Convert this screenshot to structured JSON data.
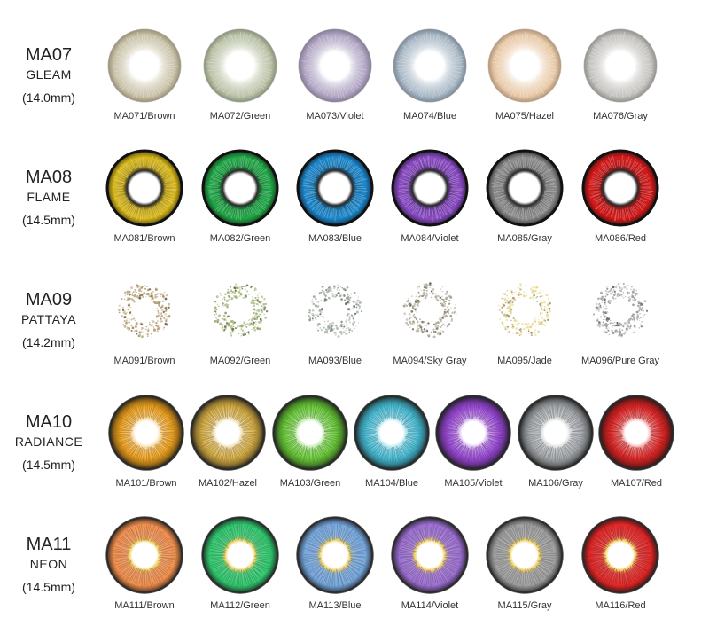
{
  "rows": [
    {
      "code": "MA07",
      "name": "GLEAM",
      "diameter": "(14.0mm)",
      "style": "gleam",
      "lenses": [
        {
          "label": "MA071/Brown",
          "color": "#c9c2a8"
        },
        {
          "label": "MA072/Green",
          "color": "#b9c2a6"
        },
        {
          "label": "MA073/Violet",
          "color": "#b1a6c4"
        },
        {
          "label": "MA074/Blue",
          "color": "#a9b8c6"
        },
        {
          "label": "MA075/Hazel",
          "color": "#e8c8a6"
        },
        {
          "label": "MA076/Gray",
          "color": "#c4c2be"
        }
      ]
    },
    {
      "code": "MA08",
      "name": "FLAME",
      "diameter": "(14.5mm)",
      "style": "flame",
      "lenses": [
        {
          "label": "MA081/Brown",
          "color": "#d8b81c"
        },
        {
          "label": "MA082/Green",
          "color": "#22a848"
        },
        {
          "label": "MA083/Blue",
          "color": "#1e88cc"
        },
        {
          "label": "MA084/Violet",
          "color": "#8a4cc4"
        },
        {
          "label": "MA085/Gray",
          "color": "#8e8e8e"
        },
        {
          "label": "MA086/Red",
          "color": "#d61c1c"
        }
      ]
    },
    {
      "code": "MA09",
      "name": "PATTAYA",
      "diameter": "(14.2mm)",
      "style": "pattaya",
      "lenses": [
        {
          "label": "MA091/Brown",
          "color": "#b8a070"
        },
        {
          "label": "MA092/Green",
          "color": "#9cb06c"
        },
        {
          "label": "MA093/Blue",
          "color": "#a0b0a0"
        },
        {
          "label": "MA094/Sky Gray",
          "color": "#a8a08c"
        },
        {
          "label": "MA095/Jade",
          "color": "#e8d68a"
        },
        {
          "label": "MA096/Pure Gray",
          "color": "#9a9a9a"
        }
      ]
    },
    {
      "code": "MA10",
      "name": "RADIANCE",
      "diameter": "(14.5mm)",
      "style": "radiance",
      "lenses": [
        {
          "label": "MA101/Brown",
          "color": "#f0a424"
        },
        {
          "label": "MA102/Hazel",
          "color": "#d8b048"
        },
        {
          "label": "MA103/Green",
          "color": "#6ccc3c"
        },
        {
          "label": "MA104/Blue",
          "color": "#4cc0d8"
        },
        {
          "label": "MA105/Violet",
          "color": "#9c4cd8"
        },
        {
          "label": "MA106/Gray",
          "color": "#a8acb0"
        },
        {
          "label": "MA107/Red",
          "color": "#e02828"
        }
      ]
    },
    {
      "code": "MA11",
      "name": "NEON",
      "diameter": "(14.5mm)",
      "style": "neon",
      "lenses": [
        {
          "label": "MA111/Brown",
          "color": "#f09050"
        },
        {
          "label": "MA112/Green",
          "color": "#34c870"
        },
        {
          "label": "MA113/Blue",
          "color": "#78a8dc"
        },
        {
          "label": "MA114/Violet",
          "color": "#9c70d0"
        },
        {
          "label": "MA115/Gray",
          "color": "#a0a0a0"
        },
        {
          "label": "MA116/Red",
          "color": "#e02828"
        }
      ]
    }
  ]
}
